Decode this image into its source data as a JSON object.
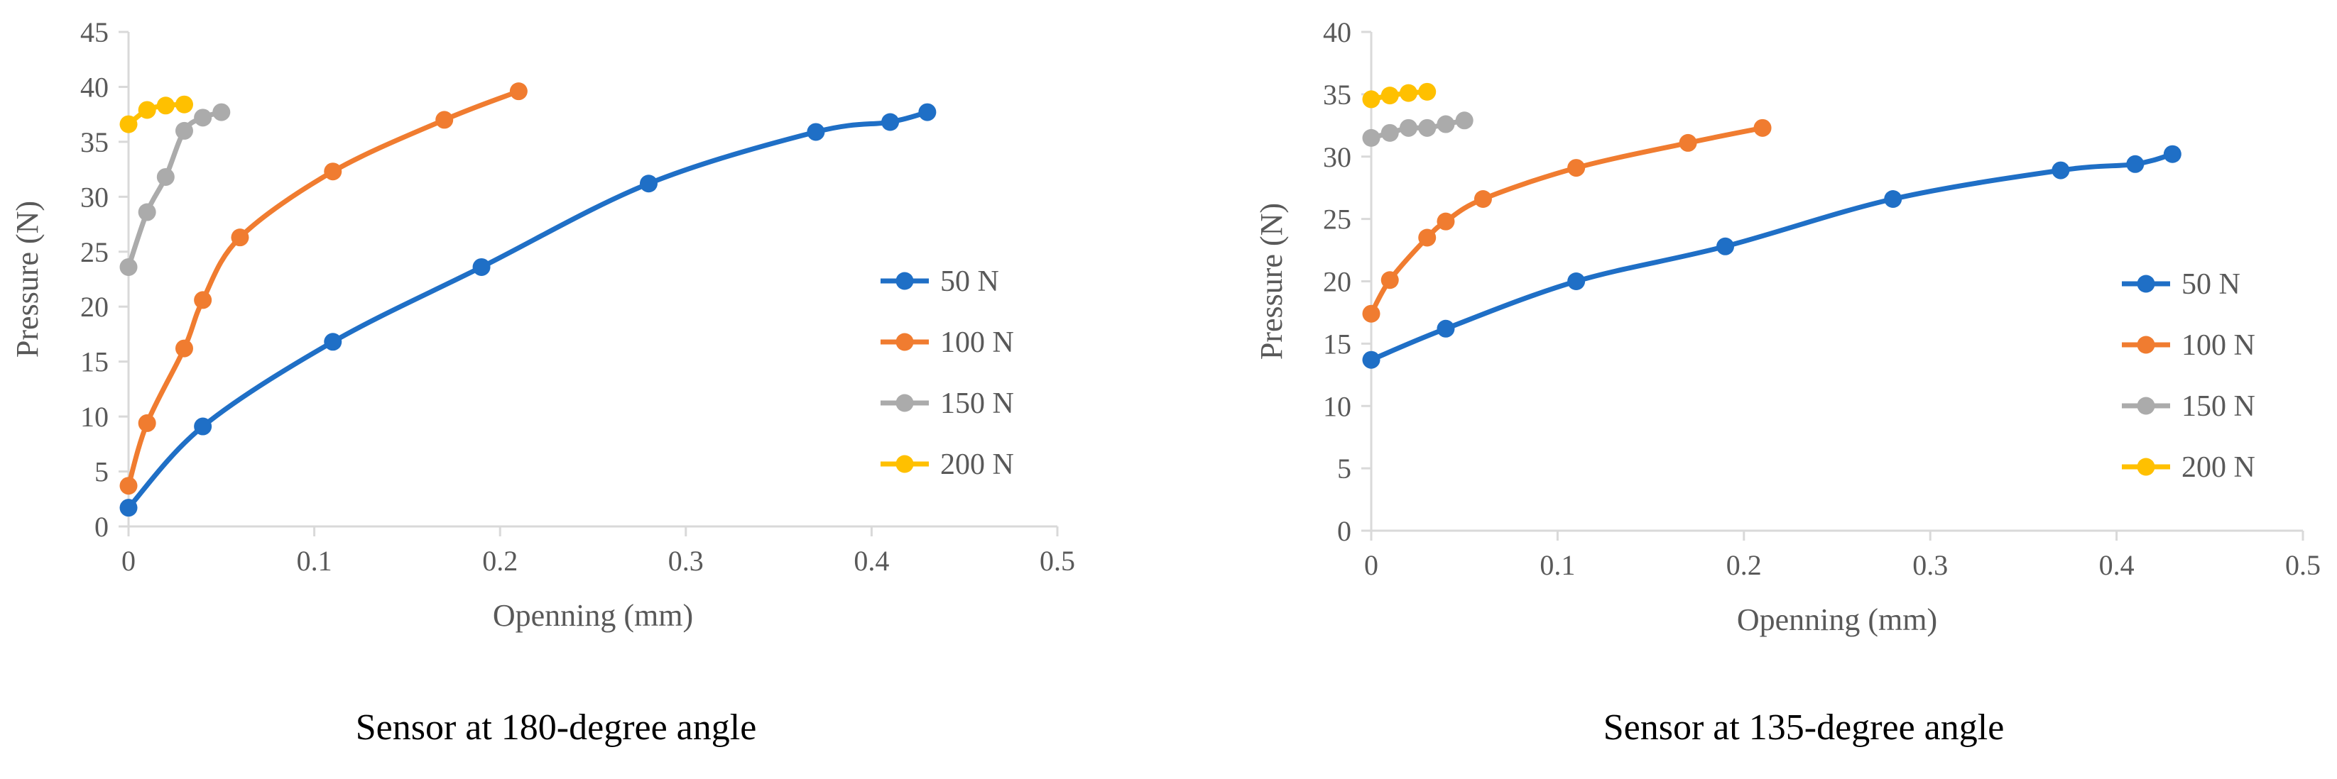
{
  "chart_data": [
    {
      "type": "line",
      "caption": "Sensor at 180-degree angle",
      "xlabel": "Openning (mm)",
      "ylabel": "Pressure (N)",
      "xlim": [
        0,
        0.5
      ],
      "ylim": [
        0,
        45
      ],
      "x_ticks": [
        "0",
        "0.1",
        "0.2",
        "0.3",
        "0.4",
        "0.5"
      ],
      "y_ticks": [
        "0",
        "5",
        "10",
        "15",
        "20",
        "25",
        "30",
        "35",
        "40",
        "45"
      ],
      "legend_position": "right",
      "series": [
        {
          "name": "50 N",
          "color": "#1f6fc6",
          "x": [
            0,
            0.04,
            0.11,
            0.19,
            0.28,
            0.37,
            0.41,
            0.43
          ],
          "y": [
            1.7,
            9.1,
            16.8,
            23.6,
            31.2,
            35.9,
            36.8,
            37.7
          ]
        },
        {
          "name": "100 N",
          "color": "#f07c30",
          "x": [
            0,
            0.01,
            0.03,
            0.04,
            0.06,
            0.11,
            0.17,
            0.21
          ],
          "y": [
            3.7,
            9.4,
            16.2,
            20.6,
            26.3,
            32.3,
            37.0,
            39.6
          ]
        },
        {
          "name": "150 N",
          "color": "#ababab",
          "x": [
            0,
            0.01,
            0.02,
            0.03,
            0.04,
            0.05
          ],
          "y": [
            23.6,
            28.6,
            31.8,
            36.0,
            37.2,
            37.7
          ]
        },
        {
          "name": "200 N",
          "color": "#ffc000",
          "x": [
            0,
            0.01,
            0.02,
            0.03
          ],
          "y": [
            36.6,
            37.9,
            38.3,
            38.4
          ]
        }
      ]
    },
    {
      "type": "line",
      "caption": "Sensor at 135-degree angle",
      "xlabel": "Openning (mm)",
      "ylabel": "Pressure (N)",
      "xlim": [
        0,
        0.5
      ],
      "ylim": [
        0,
        40
      ],
      "x_ticks": [
        "0",
        "0.1",
        "0.2",
        "0.3",
        "0.4",
        "0.5"
      ],
      "y_ticks": [
        "0",
        "5",
        "10",
        "15",
        "20",
        "25",
        "30",
        "35",
        "40"
      ],
      "legend_position": "right",
      "series": [
        {
          "name": "50 N",
          "color": "#1f6fc6",
          "x": [
            0,
            0.04,
            0.11,
            0.19,
            0.28,
            0.37,
            0.41,
            0.43
          ],
          "y": [
            13.7,
            16.2,
            20.0,
            22.8,
            26.6,
            28.9,
            29.4,
            30.2
          ]
        },
        {
          "name": "100 N",
          "color": "#f07c30",
          "x": [
            0,
            0.01,
            0.03,
            0.04,
            0.06,
            0.11,
            0.17,
            0.21
          ],
          "y": [
            17.4,
            20.1,
            23.5,
            24.8,
            26.6,
            29.1,
            31.1,
            32.3
          ]
        },
        {
          "name": "150 N",
          "color": "#ababab",
          "x": [
            0,
            0.01,
            0.02,
            0.03,
            0.04,
            0.05
          ],
          "y": [
            31.5,
            31.9,
            32.3,
            32.3,
            32.6,
            32.9
          ]
        },
        {
          "name": "200 N",
          "color": "#ffc000",
          "x": [
            0,
            0.01,
            0.02,
            0.03
          ],
          "y": [
            34.6,
            34.9,
            35.1,
            35.2
          ]
        }
      ]
    }
  ]
}
